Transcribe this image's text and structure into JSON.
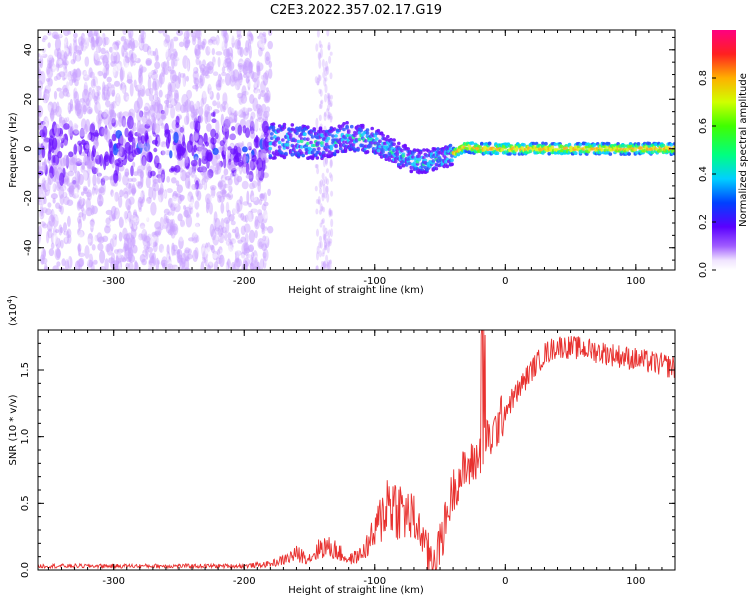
{
  "title": "C2E3.2022.357.02.17.G19",
  "chart_data": [
    {
      "type": "heatmap",
      "xlabel": "Height of straight line (km)",
      "ylabel": "Frequency (Hz)",
      "xlim": [
        -358,
        130
      ],
      "ylim": [
        -49,
        48
      ],
      "x_ticks": [
        -300,
        -200,
        -100,
        0,
        100
      ],
      "y_ticks": [
        -40,
        -20,
        0,
        20,
        40
      ],
      "grid": false,
      "colorbar": {
        "label": "Normalized spectral amplitude",
        "range": [
          0,
          1
        ],
        "ticks": [
          "0.0",
          "0.2",
          "0.4",
          "0.6",
          "0.8"
        ],
        "colormap": "white-violet-blue-cyan-green-yellow-red-magenta"
      },
      "ridge": {
        "x": [
          -180,
          -160,
          -140,
          -120,
          -100,
          -90,
          -80,
          -70,
          -60,
          -50,
          -40,
          -30,
          -20,
          0,
          50,
          100,
          130
        ],
        "y": [
          3,
          3,
          2,
          5,
          3,
          0,
          -3,
          -5,
          -5,
          -4,
          -2,
          1,
          0,
          0,
          0,
          0,
          0
        ]
      },
      "description_regions": {
        "scattered": [
          -358,
          -180
        ],
        "coherent": [
          -180,
          130
        ]
      }
    },
    {
      "type": "line",
      "xlabel": "Height of straight line (km)",
      "ylabel": "SNR (10 * v/v)",
      "yscale_label": "(x10",
      "yscale_exp": "4",
      "xlim": [
        -358,
        130
      ],
      "ylim": [
        0,
        1.8
      ],
      "x_ticks": [
        -300,
        -200,
        -100,
        0,
        100
      ],
      "y_ticks": [
        0.0,
        0.5,
        1.0,
        1.5
      ],
      "y_tick_labels": [
        "0.0",
        "0.5",
        "1.0",
        "1.5"
      ],
      "grid": false,
      "series": [
        {
          "color": "#e8312f",
          "x": [
            -358,
            -300,
            -250,
            -200,
            -180,
            -170,
            -160,
            -150,
            -140,
            -130,
            -120,
            -110,
            -100,
            -90,
            -80,
            -70,
            -60,
            -55,
            -50,
            -45,
            -40,
            -35,
            -30,
            -25,
            -20,
            -15,
            -10,
            -5,
            0,
            10,
            20,
            30,
            40,
            60,
            80,
            100,
            115,
            130
          ],
          "y": [
            0.02,
            0.02,
            0.02,
            0.02,
            0.03,
            0.05,
            0.08,
            0.06,
            0.12,
            0.1,
            0.05,
            0.08,
            0.18,
            0.35,
            0.3,
            0.25,
            0.12,
            0.1,
            0.18,
            0.4,
            0.6,
            0.7,
            0.75,
            0.8,
            0.85,
            0.95,
            1.0,
            1.1,
            1.2,
            1.35,
            1.5,
            1.62,
            1.68,
            1.66,
            1.62,
            1.58,
            1.55,
            1.52
          ]
        }
      ]
    }
  ]
}
